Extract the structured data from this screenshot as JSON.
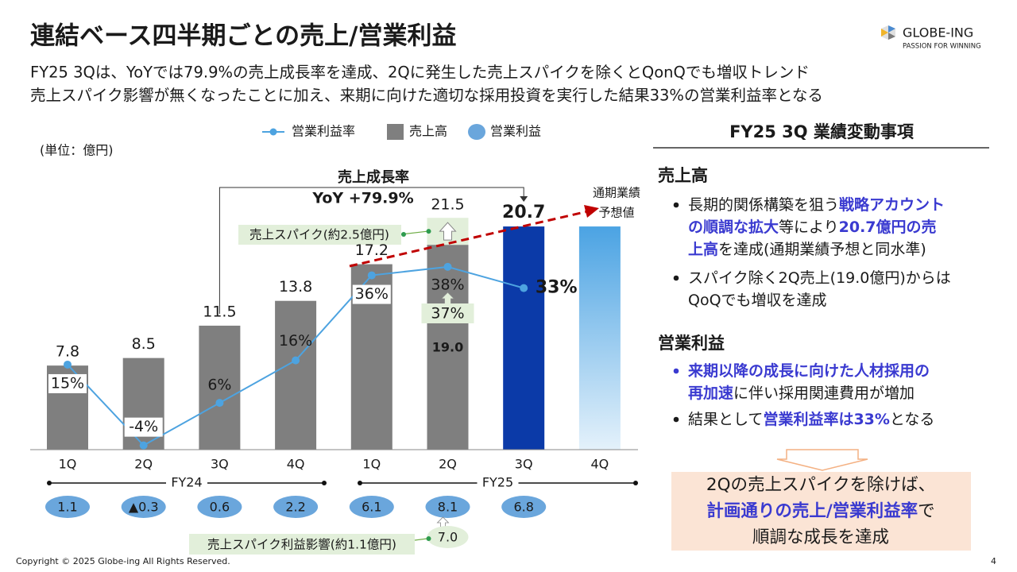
{
  "header": {
    "title": "連結ベース四半期ごとの売上/営業利益",
    "subtitle": [
      "FY25 3Qは、YoYでは79.9%の売上成長率を達成、2Qに発生した売上スパイクを除くとQonQでも増収トレンド",
      "売上スパイク影響が無くなったことに加え、来期に向けた適切な採用投資を実行した結果33%の営業利益率となる"
    ],
    "logo": "GLOBE-ING",
    "tagline": "PASSION FOR WINNING"
  },
  "chart_data": {
    "type": "bar",
    "unit": "(単位：億円)",
    "categories": [
      "1Q",
      "2Q",
      "3Q",
      "4Q",
      "1Q",
      "2Q",
      "3Q",
      "4Q"
    ],
    "groups": [
      "FY24",
      "FY25"
    ],
    "ylim": [
      0,
      28
    ],
    "y2lim": [
      -5,
      66
    ],
    "series": [
      {
        "name": "売上高",
        "color": "#7f7f7f",
        "colors": [
          "#7f7f7f",
          "#7f7f7f",
          "#7f7f7f",
          "#7f7f7f",
          "#7f7f7f",
          "#7f7f7f",
          "#0b3aa8",
          "#7f7f7f"
        ],
        "values": [
          7.8,
          8.5,
          11.5,
          13.8,
          17.2,
          19,
          20.7,
          null
        ],
        "value_labels": [
          "7.8",
          "8.5",
          "11.5",
          "13.8",
          "17.2",
          "19.0",
          "20.7",
          null
        ]
      },
      {
        "name": "営業利益率",
        "color": "#4da3e0",
        "axis": "y2",
        "values": [
          15,
          -4,
          6,
          16,
          36,
          38,
          33,
          null
        ],
        "value_labels": [
          "15%",
          "-4%",
          "6%",
          "16%",
          "36%",
          "38%",
          "33%",
          null
        ]
      },
      {
        "name": "営業利益",
        "color": "#6aa6dc",
        "values": [
          1.1,
          -0.3,
          0.6,
          2.2,
          6.1,
          8.1,
          6.8,
          null
        ],
        "value_labels": [
          "1.1",
          "▲0.3",
          "0.6",
          "2.2",
          "6.1",
          "8.1",
          "6.8",
          null
        ]
      }
    ],
    "spike": {
      "name": "売上スパイク(約2.5億円)",
      "color": "#e2efda",
      "values": [
        null,
        null,
        null,
        null,
        null,
        2.5,
        null,
        null
      ],
      "total_label": "21.5"
    },
    "margin_ex_spike": {
      "values": [
        null,
        null,
        null,
        null,
        null,
        37,
        null,
        null
      ],
      "value_labels": [
        null,
        null,
        null,
        null,
        null,
        "37%",
        null,
        null
      ],
      "color": "#e2efda"
    },
    "profit_ex_spike": {
      "name": "売上スパイク利益影響(約1.1億円)",
      "values": [
        null,
        null,
        null,
        null,
        null,
        7,
        null,
        null
      ],
      "value_labels": [
        null,
        null,
        null,
        null,
        null,
        "7.0",
        null,
        null
      ],
      "color": "#e2efda"
    },
    "forecast": {
      "label_lines": [
        "通期業績",
        "予想値"
      ],
      "color": "#4ba3e3",
      "values": [
        null,
        null,
        null,
        null,
        null,
        null,
        null,
        20.7
      ]
    },
    "growth": {
      "title": "売上成長率",
      "value": "YoY +79.9%"
    }
  },
  "panel": {
    "title": "FY25 3Q 業績変動事項",
    "sections": [
      {
        "heading": "売上高",
        "bullets": [
          {
            "em": false,
            "lines": [
              [
                {
                  "text": "長期的関係構築を狙う",
                  "em": false
                },
                {
                  "text": "戦略アカウント",
                  "em": true
                }
              ],
              [
                {
                  "text": "の順調な拡大",
                  "em": true
                },
                {
                  "text": "等により",
                  "em": false
                },
                {
                  "text": "20.7億円の売",
                  "em": true
                }
              ],
              [
                {
                  "text": "上高",
                  "em": true
                },
                {
                  "text": "を達成(通期業績予想と同水準)",
                  "em": false
                }
              ]
            ]
          },
          {
            "em": false,
            "lines": [
              [
                {
                  "text": "スパイク除く2Q売上(19.0億円)からは",
                  "em": false
                }
              ],
              [
                {
                  "text": "QoQでも増収を達成",
                  "em": false
                }
              ]
            ]
          }
        ]
      },
      {
        "heading": "営業利益",
        "bullets": [
          {
            "em": true,
            "lines": [
              [
                {
                  "text": "来期以降の成長に向けた人材採用の",
                  "em": true
                }
              ],
              [
                {
                  "text": "再加速",
                  "em": true
                },
                {
                  "text": "に伴い採用関連費用が増加",
                  "em": false
                }
              ]
            ]
          },
          {
            "em": false,
            "lines": [
              [
                {
                  "text": "結果として",
                  "em": false
                },
                {
                  "text": "営業利益率は33%",
                  "em": true
                },
                {
                  "text": "となる",
                  "em": false
                }
              ]
            ]
          }
        ]
      }
    ],
    "conclusion": [
      [
        {
          "text": "2Qの売上スパイクを除けば、",
          "em": false
        }
      ],
      [
        {
          "text": "計画通りの売上/営業利益率",
          "em": true
        },
        {
          "text": "で",
          "em": false
        }
      ],
      [
        {
          "text": "順調な成長を達成",
          "em": false
        }
      ]
    ]
  },
  "footer": {
    "copyright": "Copyright © 2025 Globe-ing All Rights Reserved.",
    "page": "4"
  }
}
